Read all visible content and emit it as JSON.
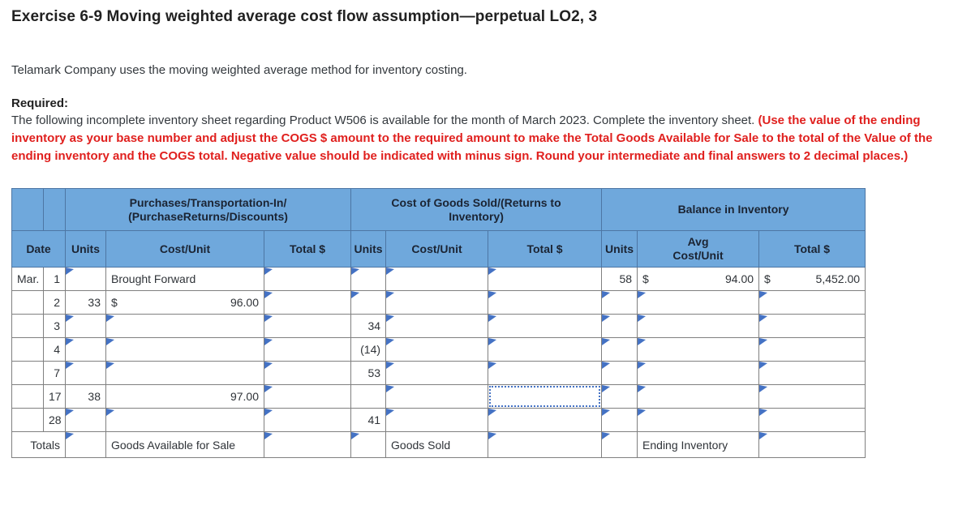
{
  "page": {
    "title": "Exercise 6-9 Moving weighted average cost flow assumption—perpetual LO2, 3",
    "intro": "Telamark Company uses the moving weighted average method for inventory costing.",
    "required_label": "Required:",
    "required_text": "The following incomplete inventory sheet regarding Product W506 is available for the month of March 2023. Complete the inventory sheet. ",
    "required_bold_red": "(Use the value of the ending inventory as your base number and adjust the COGS $ amount to the required amount to make the Total Goods Available for Sale to the total of the Value of the ending inventory and the COGS total. Negative value should be indicated with minus sign. Round your intermediate and final answers to 2 decimal places.)"
  },
  "colors": {
    "header_bg": "#6FA8DC",
    "header_text": "#1b2433",
    "input_border": "#4472C4",
    "focus_border": "#4472C4",
    "static_border": "#808080",
    "red_text": "#e0201e"
  },
  "table": {
    "groups": [
      {
        "label": "Purchases/Transportation-In/\n(PurchaseReturns/Discounts)"
      },
      {
        "label": "Cost of Goods Sold/(Returns to\nInventory)"
      },
      {
        "label": "Balance in Inventory"
      }
    ],
    "columns": [
      "Date",
      "Units",
      "Cost/Unit",
      "Total $",
      "Units",
      "Cost/Unit",
      "Total $",
      "Units",
      "Avg\nCost/Unit",
      "Total $"
    ],
    "rows": [
      {
        "id": "mar-1",
        "cells": [
          {
            "type": "static",
            "text": "Mar.",
            "align": "left"
          },
          {
            "type": "static",
            "text": "1",
            "align": "right"
          },
          {
            "type": "input"
          },
          {
            "type": "static",
            "text": "Brought Forward",
            "align": "left"
          },
          {
            "type": "input"
          },
          {
            "type": "input"
          },
          {
            "type": "input"
          },
          {
            "type": "input"
          },
          {
            "type": "static",
            "text": "58",
            "align": "right"
          },
          {
            "type": "money",
            "cur": "$",
            "amount": "94.00"
          },
          {
            "type": "money",
            "cur": "$",
            "amount": "5,452.00"
          }
        ]
      },
      {
        "id": "mar-2",
        "cells": [
          {
            "type": "static",
            "text": "",
            "align": "left"
          },
          {
            "type": "static",
            "text": "2",
            "align": "right"
          },
          {
            "type": "static",
            "text": "33",
            "align": "right"
          },
          {
            "type": "money",
            "cur": "$",
            "amount": "96.00"
          },
          {
            "type": "input"
          },
          {
            "type": "input"
          },
          {
            "type": "input"
          },
          {
            "type": "input"
          },
          {
            "type": "input"
          },
          {
            "type": "input"
          },
          {
            "type": "input"
          }
        ]
      },
      {
        "id": "mar-3",
        "cells": [
          {
            "type": "static",
            "text": "",
            "align": "left"
          },
          {
            "type": "static",
            "text": "3",
            "align": "right"
          },
          {
            "type": "input"
          },
          {
            "type": "input"
          },
          {
            "type": "input"
          },
          {
            "type": "static",
            "text": "34",
            "align": "right"
          },
          {
            "type": "input"
          },
          {
            "type": "input"
          },
          {
            "type": "input"
          },
          {
            "type": "input"
          },
          {
            "type": "input"
          }
        ]
      },
      {
        "id": "mar-4",
        "cells": [
          {
            "type": "static",
            "text": "",
            "align": "left"
          },
          {
            "type": "static",
            "text": "4",
            "align": "right"
          },
          {
            "type": "input"
          },
          {
            "type": "input"
          },
          {
            "type": "input"
          },
          {
            "type": "static",
            "text": "(14)",
            "align": "right"
          },
          {
            "type": "input"
          },
          {
            "type": "input"
          },
          {
            "type": "input"
          },
          {
            "type": "input"
          },
          {
            "type": "input"
          }
        ]
      },
      {
        "id": "mar-7",
        "cells": [
          {
            "type": "static",
            "text": "",
            "align": "left"
          },
          {
            "type": "static",
            "text": "7",
            "align": "right"
          },
          {
            "type": "input"
          },
          {
            "type": "input"
          },
          {
            "type": "input"
          },
          {
            "type": "static",
            "text": "53",
            "align": "right"
          },
          {
            "type": "input"
          },
          {
            "type": "input"
          },
          {
            "type": "input"
          },
          {
            "type": "input"
          },
          {
            "type": "input"
          }
        ]
      },
      {
        "id": "mar-17",
        "cells": [
          {
            "type": "static",
            "text": "",
            "align": "left"
          },
          {
            "type": "static",
            "text": "17",
            "align": "right"
          },
          {
            "type": "static",
            "text": "38",
            "align": "right"
          },
          {
            "type": "static",
            "text": "97.00",
            "align": "right"
          },
          {
            "type": "input"
          },
          {
            "type": "static",
            "text": "",
            "align": "right"
          },
          {
            "type": "input"
          },
          {
            "type": "focus"
          },
          {
            "type": "input"
          },
          {
            "type": "input"
          },
          {
            "type": "input"
          }
        ]
      },
      {
        "id": "mar-28",
        "cells": [
          {
            "type": "static",
            "text": "",
            "align": "left"
          },
          {
            "type": "static",
            "text": "28",
            "align": "right"
          },
          {
            "type": "input"
          },
          {
            "type": "input"
          },
          {
            "type": "input"
          },
          {
            "type": "static",
            "text": "41",
            "align": "right"
          },
          {
            "type": "input"
          },
          {
            "type": "input"
          },
          {
            "type": "input"
          },
          {
            "type": "input"
          },
          {
            "type": "input"
          }
        ]
      },
      {
        "id": "totals",
        "cells": [
          {
            "type": "static",
            "text": "Totals",
            "align": "right",
            "colspan": 2,
            "name": "totals-label"
          },
          {
            "type": "input"
          },
          {
            "type": "static",
            "text": "Goods Available for Sale",
            "align": "left"
          },
          {
            "type": "input"
          },
          {
            "type": "input"
          },
          {
            "type": "static",
            "text": "Goods Sold",
            "align": "left"
          },
          {
            "type": "input"
          },
          {
            "type": "input"
          },
          {
            "type": "static",
            "text": "Ending Inventory",
            "align": "left"
          },
          {
            "type": "input"
          }
        ]
      }
    ]
  }
}
